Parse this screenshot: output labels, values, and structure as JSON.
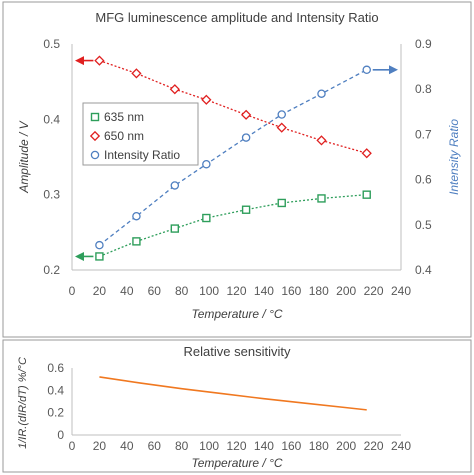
{
  "chart_data": [
    {
      "type": "line",
      "title": "MFG luminescence amplitude and Intensity Ratio",
      "xlabel": "Temperature / °C",
      "ylabel": "Amplitude / V",
      "y2label": "Intensity Ratio",
      "xlim": [
        0,
        240
      ],
      "ylim": [
        0.2,
        0.5
      ],
      "y2lim": [
        0.4,
        0.9
      ],
      "xticks": [
        "0",
        "20",
        "40",
        "60",
        "80",
        "100",
        "120",
        "140",
        "160",
        "180",
        "200",
        "220",
        "240"
      ],
      "yticks": [
        "0.2",
        "0.3",
        "0.4",
        "0.5"
      ],
      "y2ticks": [
        "0.4",
        "0.5",
        "0.6",
        "0.7",
        "0.8",
        "0.9"
      ],
      "grid": false,
      "legend_position": "left",
      "series": [
        {
          "name": "635 nm",
          "axis": "left",
          "color": "#2e9e5b",
          "marker": "square",
          "line": "dotted",
          "x": [
            20,
            47,
            75,
            98,
            127,
            153,
            182,
            215
          ],
          "values": [
            0.218,
            0.238,
            0.255,
            0.269,
            0.28,
            0.289,
            0.295,
            0.3
          ]
        },
        {
          "name": "650 nm",
          "axis": "left",
          "color": "#e02020",
          "marker": "diamond",
          "line": "dotted",
          "x": [
            20,
            47,
            75,
            98,
            127,
            153,
            182,
            215
          ],
          "values": [
            0.478,
            0.461,
            0.44,
            0.426,
            0.406,
            0.389,
            0.372,
            0.355
          ]
        },
        {
          "name": "Intensity Ratio",
          "axis": "right",
          "color": "#4f7fc0",
          "marker": "circle",
          "line": "dashed",
          "x": [
            20,
            47,
            75,
            98,
            127,
            153,
            182,
            215
          ],
          "values": [
            0.455,
            0.519,
            0.587,
            0.634,
            0.693,
            0.744,
            0.79,
            0.843
          ]
        }
      ],
      "arrows": [
        {
          "series": "650 nm",
          "direction": "left"
        },
        {
          "series": "635 nm",
          "direction": "left"
        },
        {
          "series": "Intensity Ratio",
          "direction": "right"
        }
      ]
    },
    {
      "type": "line",
      "title": "Relative sensitivity",
      "xlabel": "Temperature / °C",
      "ylabel": "1/IR.(dIR/dT) %/°C",
      "xlim": [
        0,
        240
      ],
      "ylim": [
        0,
        0.6
      ],
      "xticks": [
        "0",
        "20",
        "40",
        "60",
        "80",
        "100",
        "120",
        "140",
        "160",
        "180",
        "200",
        "220",
        "240"
      ],
      "yticks": [
        "0",
        "0.2",
        "0.4",
        "0.6"
      ],
      "grid": false,
      "series": [
        {
          "name": "",
          "color": "#f07820",
          "x": [
            20,
            50,
            80,
            110,
            140,
            170,
            200,
            215
          ],
          "values": [
            0.52,
            0.465,
            0.415,
            0.37,
            0.325,
            0.285,
            0.245,
            0.225
          ]
        }
      ]
    }
  ]
}
